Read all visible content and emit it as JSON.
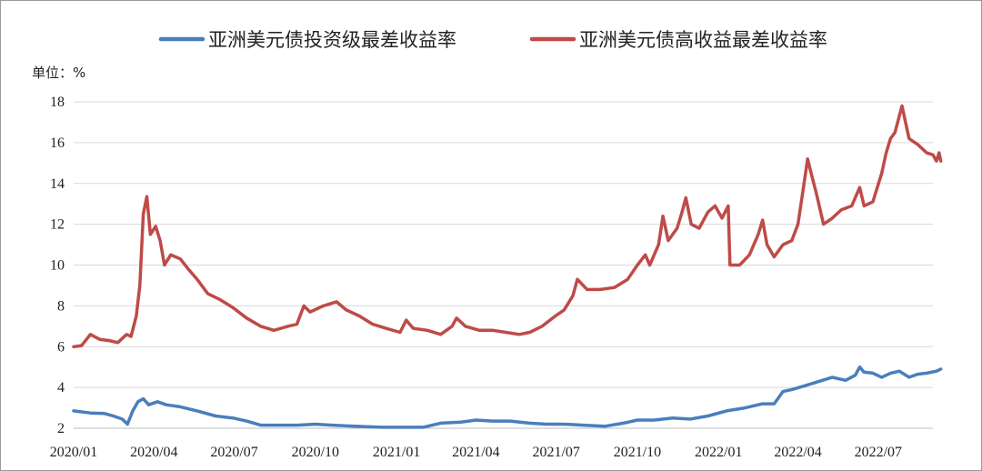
{
  "chart_data": {
    "type": "line",
    "title": "",
    "xlabel": "",
    "ylabel": "单位：%",
    "ylim": [
      2,
      18
    ],
    "y_ticks": [
      2,
      4,
      6,
      8,
      10,
      12,
      14,
      16,
      18
    ],
    "x_ticks": [
      "2020/01",
      "2020/04",
      "2020/07",
      "2020/10",
      "2021/01",
      "2021/04",
      "2021/07",
      "2021/10",
      "2022/01",
      "2022/04",
      "2022/07"
    ],
    "xlim": [
      "2020/01",
      "2022/09"
    ],
    "grid": "horizontal",
    "legend_position": "top",
    "series": [
      {
        "name": "亚洲美元债投资级最差收益率",
        "color": "#4a7ebb",
        "points": [
          [
            "2020-01-01",
            2.85
          ],
          [
            "2020-01-20",
            2.75
          ],
          [
            "2020-02-05",
            2.72
          ],
          [
            "2020-02-15",
            2.6
          ],
          [
            "2020-02-25",
            2.45
          ],
          [
            "2020-03-02",
            2.2
          ],
          [
            "2020-03-08",
            2.85
          ],
          [
            "2020-03-14",
            3.3
          ],
          [
            "2020-03-20",
            3.45
          ],
          [
            "2020-03-26",
            3.15
          ],
          [
            "2020-04-05",
            3.3
          ],
          [
            "2020-04-15",
            3.15
          ],
          [
            "2020-05-01",
            3.05
          ],
          [
            "2020-05-20",
            2.85
          ],
          [
            "2020-06-10",
            2.6
          ],
          [
            "2020-06-30",
            2.5
          ],
          [
            "2020-07-15",
            2.35
          ],
          [
            "2020-07-31",
            2.15
          ],
          [
            "2020-08-20",
            2.15
          ],
          [
            "2020-09-10",
            2.15
          ],
          [
            "2020-10-01",
            2.2
          ],
          [
            "2020-10-20",
            2.15
          ],
          [
            "2020-11-15",
            2.1
          ],
          [
            "2020-12-15",
            2.05
          ],
          [
            "2021-01-10",
            2.05
          ],
          [
            "2021-01-31",
            2.05
          ],
          [
            "2021-02-20",
            2.25
          ],
          [
            "2021-03-15",
            2.3
          ],
          [
            "2021-04-01",
            2.4
          ],
          [
            "2021-04-20",
            2.35
          ],
          [
            "2021-05-10",
            2.35
          ],
          [
            "2021-06-01",
            2.25
          ],
          [
            "2021-06-20",
            2.2
          ],
          [
            "2021-07-10",
            2.2
          ],
          [
            "2021-08-01",
            2.15
          ],
          [
            "2021-08-25",
            2.1
          ],
          [
            "2021-09-15",
            2.25
          ],
          [
            "2021-10-01",
            2.4
          ],
          [
            "2021-10-20",
            2.4
          ],
          [
            "2021-11-10",
            2.5
          ],
          [
            "2021-11-30",
            2.45
          ],
          [
            "2021-12-20",
            2.6
          ],
          [
            "2022-01-10",
            2.85
          ],
          [
            "2022-01-31",
            3.0
          ],
          [
            "2022-02-20",
            3.2
          ],
          [
            "2022-03-05",
            3.2
          ],
          [
            "2022-03-15",
            3.8
          ],
          [
            "2022-03-25",
            3.9
          ],
          [
            "2022-04-10",
            4.1
          ],
          [
            "2022-04-25",
            4.3
          ],
          [
            "2022-05-10",
            4.5
          ],
          [
            "2022-05-25",
            4.35
          ],
          [
            "2022-06-05",
            4.6
          ],
          [
            "2022-06-10",
            5.0
          ],
          [
            "2022-06-15",
            4.75
          ],
          [
            "2022-06-25",
            4.7
          ],
          [
            "2022-07-05",
            4.5
          ],
          [
            "2022-07-15",
            4.7
          ],
          [
            "2022-07-25",
            4.8
          ],
          [
            "2022-08-05",
            4.5
          ],
          [
            "2022-08-15",
            4.65
          ],
          [
            "2022-08-25",
            4.7
          ],
          [
            "2022-09-05",
            4.8
          ],
          [
            "2022-09-10",
            4.9
          ]
        ]
      },
      {
        "name": "亚洲美元债高收益最差收益率",
        "color": "#be4b48",
        "points": [
          [
            "2020-01-01",
            6.0
          ],
          [
            "2020-01-10",
            6.05
          ],
          [
            "2020-01-20",
            6.6
          ],
          [
            "2020-01-31",
            6.35
          ],
          [
            "2020-02-10",
            6.3
          ],
          [
            "2020-02-20",
            6.2
          ],
          [
            "2020-03-01",
            6.6
          ],
          [
            "2020-03-06",
            6.5
          ],
          [
            "2020-03-12",
            7.5
          ],
          [
            "2020-03-16",
            9.0
          ],
          [
            "2020-03-20",
            12.5
          ],
          [
            "2020-03-24",
            13.35
          ],
          [
            "2020-03-28",
            11.5
          ],
          [
            "2020-04-03",
            11.9
          ],
          [
            "2020-04-08",
            11.2
          ],
          [
            "2020-04-13",
            10.0
          ],
          [
            "2020-04-20",
            10.5
          ],
          [
            "2020-05-01",
            10.3
          ],
          [
            "2020-05-10",
            9.8
          ],
          [
            "2020-05-20",
            9.3
          ],
          [
            "2020-06-01",
            8.6
          ],
          [
            "2020-06-15",
            8.3
          ],
          [
            "2020-06-30",
            7.9
          ],
          [
            "2020-07-15",
            7.4
          ],
          [
            "2020-07-31",
            7.0
          ],
          [
            "2020-08-15",
            6.8
          ],
          [
            "2020-08-31",
            7.0
          ],
          [
            "2020-09-10",
            7.1
          ],
          [
            "2020-09-18",
            8.0
          ],
          [
            "2020-09-25",
            7.7
          ],
          [
            "2020-10-10",
            8.0
          ],
          [
            "2020-10-25",
            8.2
          ],
          [
            "2020-11-05",
            7.8
          ],
          [
            "2020-11-20",
            7.5
          ],
          [
            "2020-12-05",
            7.1
          ],
          [
            "2020-12-20",
            6.9
          ],
          [
            "2021-01-05",
            6.7
          ],
          [
            "2021-01-12",
            7.3
          ],
          [
            "2021-01-20",
            6.9
          ],
          [
            "2021-02-05",
            6.8
          ],
          [
            "2021-02-20",
            6.6
          ],
          [
            "2021-03-05",
            7.0
          ],
          [
            "2021-03-10",
            7.4
          ],
          [
            "2021-03-20",
            7.0
          ],
          [
            "2021-04-05",
            6.8
          ],
          [
            "2021-04-20",
            6.8
          ],
          [
            "2021-05-05",
            6.7
          ],
          [
            "2021-05-20",
            6.6
          ],
          [
            "2021-06-01",
            6.7
          ],
          [
            "2021-06-15",
            7.0
          ],
          [
            "2021-06-30",
            7.5
          ],
          [
            "2021-07-10",
            7.8
          ],
          [
            "2021-07-20",
            8.5
          ],
          [
            "2021-07-25",
            9.3
          ],
          [
            "2021-08-05",
            8.8
          ],
          [
            "2021-08-20",
            8.8
          ],
          [
            "2021-09-05",
            8.9
          ],
          [
            "2021-09-20",
            9.3
          ],
          [
            "2021-10-01",
            10.0
          ],
          [
            "2021-10-10",
            10.5
          ],
          [
            "2021-10-15",
            10.0
          ],
          [
            "2021-10-25",
            11.0
          ],
          [
            "2021-10-30",
            12.4
          ],
          [
            "2021-11-05",
            11.2
          ],
          [
            "2021-11-15",
            11.8
          ],
          [
            "2021-11-20",
            12.5
          ],
          [
            "2021-11-25",
            13.3
          ],
          [
            "2021-12-01",
            12.0
          ],
          [
            "2021-12-10",
            11.8
          ],
          [
            "2021-12-20",
            12.6
          ],
          [
            "2021-12-28",
            12.9
          ],
          [
            "2022-01-05",
            12.3
          ],
          [
            "2022-01-12",
            12.9
          ],
          [
            "2022-01-14",
            10.0
          ],
          [
            "2022-01-25",
            10.0
          ],
          [
            "2022-02-05",
            10.5
          ],
          [
            "2022-02-15",
            11.5
          ],
          [
            "2022-02-20",
            12.2
          ],
          [
            "2022-02-25",
            11.0
          ],
          [
            "2022-03-05",
            10.4
          ],
          [
            "2022-03-15",
            11.0
          ],
          [
            "2022-03-25",
            11.2
          ],
          [
            "2022-04-01",
            12.0
          ],
          [
            "2022-04-08",
            14.0
          ],
          [
            "2022-04-12",
            15.2
          ],
          [
            "2022-04-16",
            14.5
          ],
          [
            "2022-04-22",
            13.5
          ],
          [
            "2022-04-30",
            12.0
          ],
          [
            "2022-05-10",
            12.3
          ],
          [
            "2022-05-20",
            12.7
          ],
          [
            "2022-06-01",
            12.9
          ],
          [
            "2022-06-10",
            13.8
          ],
          [
            "2022-06-15",
            12.9
          ],
          [
            "2022-06-25",
            13.1
          ],
          [
            "2022-07-05",
            14.5
          ],
          [
            "2022-07-10",
            15.5
          ],
          [
            "2022-07-15",
            16.2
          ],
          [
            "2022-07-20",
            16.5
          ],
          [
            "2022-07-28",
            17.8
          ],
          [
            "2022-08-05",
            16.2
          ],
          [
            "2022-08-15",
            15.9
          ],
          [
            "2022-08-25",
            15.5
          ],
          [
            "2022-09-01",
            15.4
          ],
          [
            "2022-09-05",
            15.1
          ],
          [
            "2022-09-08",
            15.5
          ],
          [
            "2022-09-10",
            15.1
          ]
        ]
      }
    ]
  }
}
